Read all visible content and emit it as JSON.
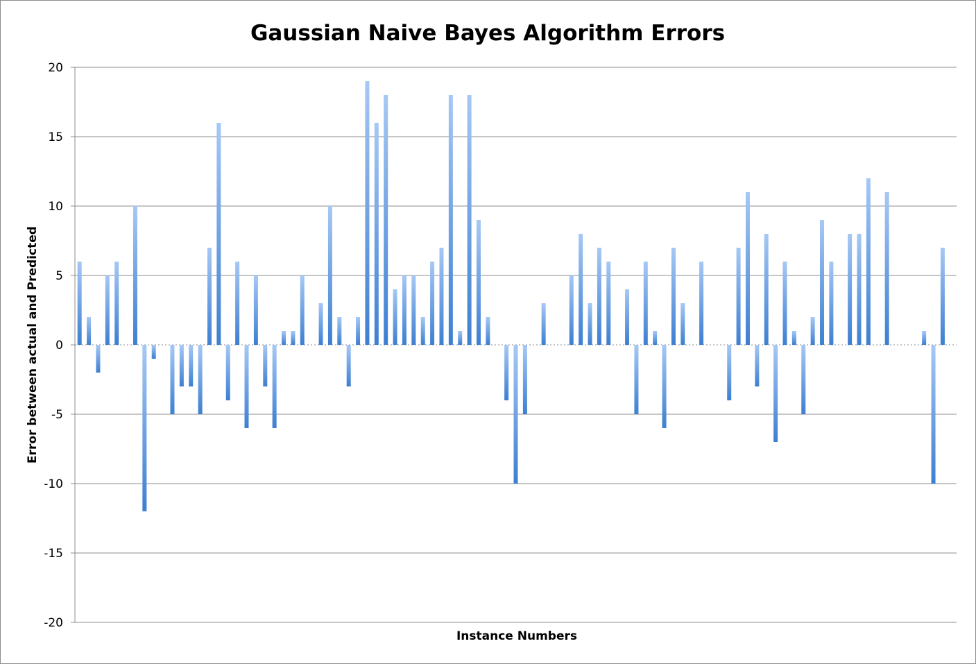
{
  "chart_data": {
    "type": "bar",
    "title": "Gaussian Naive Bayes Algorithm Errors",
    "xlabel": "Instance Numbers",
    "ylabel": "Error between actual and Predicted",
    "ylim": [
      -20,
      20
    ],
    "yticks": [
      20,
      15,
      10,
      5,
      0,
      -5,
      -10,
      -15,
      -20
    ],
    "ytick_labels": [
      "20",
      "15",
      "10",
      "5",
      "0",
      "-5",
      "-10",
      "-15",
      "-20"
    ],
    "grid": true,
    "legend": "none",
    "bar_color_top": "#a6c8f5",
    "bar_color_bottom": "#3d7fd1",
    "grid_color": "#8c8c8c",
    "x": [
      1,
      2,
      3,
      4,
      5,
      6,
      7,
      8,
      9,
      10,
      11,
      12,
      13,
      14,
      15,
      16,
      17,
      18,
      19,
      20,
      21,
      22,
      23,
      24,
      25,
      26,
      27,
      28,
      29,
      30,
      31,
      32,
      33,
      34,
      35,
      36,
      37,
      38,
      39,
      40,
      41,
      42,
      43,
      44,
      45,
      46,
      47,
      48,
      49,
      50,
      51,
      52,
      53,
      54,
      55,
      56,
      57,
      58,
      59,
      60,
      61,
      62,
      63,
      64,
      65,
      66,
      67,
      68,
      69,
      70,
      71,
      72,
      73,
      74,
      75,
      76,
      77,
      78,
      79,
      80,
      81,
      82,
      83,
      84,
      85,
      86,
      87,
      88,
      89,
      90,
      91,
      92,
      93,
      94,
      95
    ],
    "values": [
      6,
      2,
      -2,
      5,
      6,
      0,
      10,
      -12,
      -1,
      0,
      -5,
      -3,
      -3,
      -5,
      7,
      16,
      -4,
      6,
      -6,
      5,
      -3,
      -6,
      1,
      1,
      5,
      0,
      3,
      10,
      2,
      -3,
      2,
      19,
      16,
      18,
      4,
      5,
      5,
      2,
      6,
      7,
      18,
      1,
      18,
      9,
      2,
      0,
      -4,
      -10,
      -5,
      0,
      3,
      0,
      0,
      5,
      8,
      3,
      7,
      6,
      0,
      4,
      -5,
      6,
      1,
      -6,
      7,
      3,
      0,
      6,
      0,
      0,
      -4,
      7,
      11,
      -3,
      8,
      -7,
      6,
      1,
      -5,
      2,
      9,
      6,
      0,
      8,
      8,
      12,
      0,
      11,
      0,
      0,
      0,
      1,
      -10,
      7,
      0
    ]
  }
}
